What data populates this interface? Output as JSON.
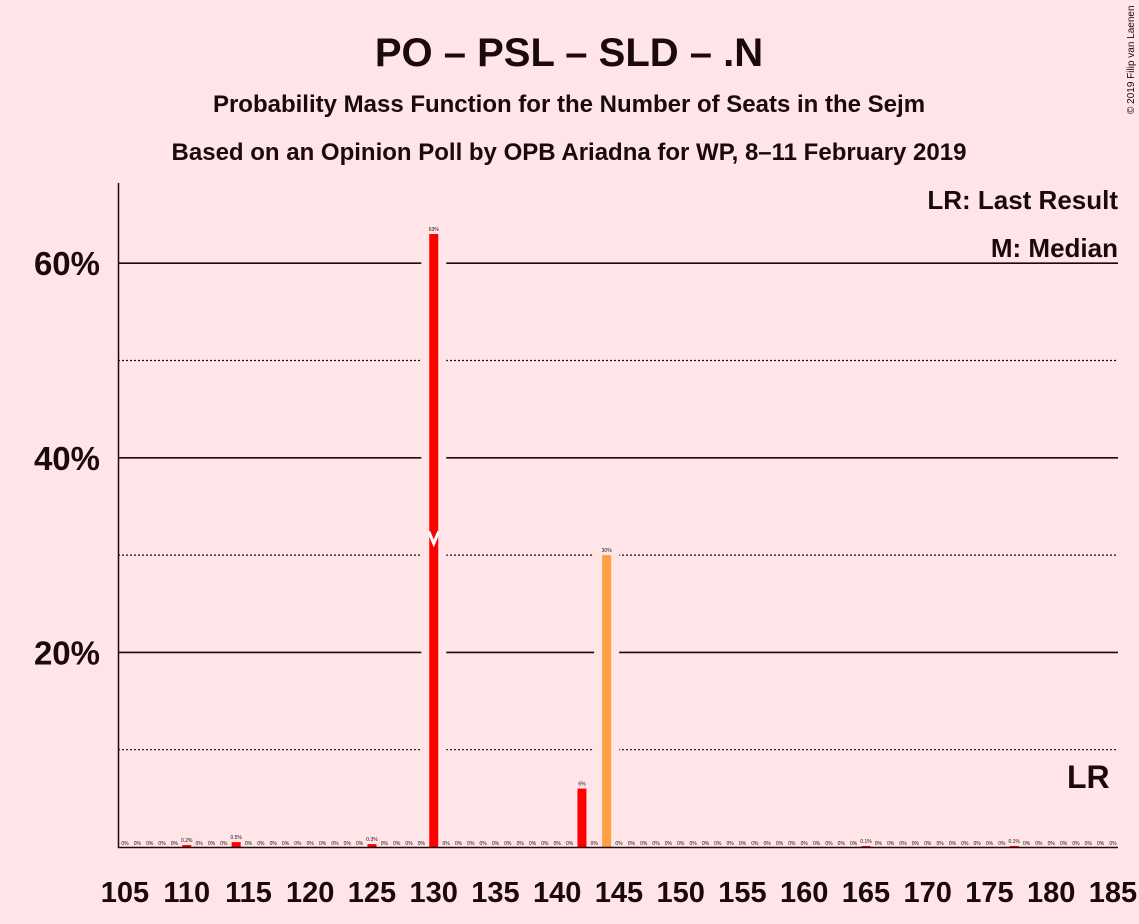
{
  "header": {
    "title": "PO – PSL – SLD – .N",
    "subtitle": "Probability Mass Function for the Number of Seats in the Sejm",
    "source": "Based on an Opinion Poll by OPB Ariadna for WP, 8–11 February 2019",
    "copyright": "© 2019 Filip van Laenen"
  },
  "legend": {
    "last_result": "LR: Last Result",
    "median": "M: Median"
  },
  "markers": {
    "lr_label": "LR",
    "median_label": "M"
  },
  "colors": {
    "background": "#FFE4E8",
    "bar": "#FF0000",
    "bar_highlight": "#FFA040",
    "text": "#1a0a0a"
  },
  "chart_data": {
    "type": "bar",
    "x_start": 105,
    "x_end": 185,
    "y_ticks": [
      {
        "value": 20,
        "label": "20%"
      },
      {
        "value": 40,
        "label": "40%"
      },
      {
        "value": 60,
        "label": "60%"
      }
    ],
    "y_dotted": [
      10,
      30,
      50
    ],
    "ylim": [
      0,
      68.5
    ],
    "x_tick_labels": [
      "105",
      "110",
      "115",
      "120",
      "125",
      "130",
      "135",
      "140",
      "145",
      "150",
      "155",
      "160",
      "165",
      "170",
      "175",
      "180",
      "185"
    ],
    "median_seat": 130,
    "last_result_seat": 183,
    "bars": [
      {
        "seat": 105,
        "value": 0,
        "label": "0%"
      },
      {
        "seat": 106,
        "value": 0,
        "label": "0%"
      },
      {
        "seat": 107,
        "value": 0,
        "label": "0%"
      },
      {
        "seat": 108,
        "value": 0,
        "label": "0%"
      },
      {
        "seat": 109,
        "value": 0,
        "label": "0%"
      },
      {
        "seat": 110,
        "value": 0.2,
        "label": "0.2%"
      },
      {
        "seat": 111,
        "value": 0,
        "label": "0%"
      },
      {
        "seat": 112,
        "value": 0,
        "label": "0%"
      },
      {
        "seat": 113,
        "value": 0,
        "label": "0%"
      },
      {
        "seat": 114,
        "value": 0.5,
        "label": "0.5%"
      },
      {
        "seat": 115,
        "value": 0,
        "label": "0%"
      },
      {
        "seat": 116,
        "value": 0,
        "label": "0%"
      },
      {
        "seat": 117,
        "value": 0,
        "label": "0%"
      },
      {
        "seat": 118,
        "value": 0,
        "label": "0%"
      },
      {
        "seat": 119,
        "value": 0,
        "label": "0%"
      },
      {
        "seat": 120,
        "value": 0,
        "label": "0%"
      },
      {
        "seat": 121,
        "value": 0,
        "label": "0%"
      },
      {
        "seat": 122,
        "value": 0,
        "label": "0%"
      },
      {
        "seat": 123,
        "value": 0,
        "label": "0%"
      },
      {
        "seat": 124,
        "value": 0,
        "label": "0%"
      },
      {
        "seat": 125,
        "value": 0.3,
        "label": "0.3%"
      },
      {
        "seat": 126,
        "value": 0,
        "label": "0%"
      },
      {
        "seat": 127,
        "value": 0,
        "label": "0%"
      },
      {
        "seat": 128,
        "value": 0,
        "label": "0%"
      },
      {
        "seat": 129,
        "value": 0,
        "label": "0%"
      },
      {
        "seat": 130,
        "value": 63,
        "label": "63%"
      },
      {
        "seat": 131,
        "value": 0,
        "label": "0%"
      },
      {
        "seat": 132,
        "value": 0,
        "label": "0%"
      },
      {
        "seat": 133,
        "value": 0,
        "label": "0%"
      },
      {
        "seat": 134,
        "value": 0,
        "label": "0%"
      },
      {
        "seat": 135,
        "value": 0,
        "label": "0%"
      },
      {
        "seat": 136,
        "value": 0,
        "label": "0%"
      },
      {
        "seat": 137,
        "value": 0,
        "label": "0%"
      },
      {
        "seat": 138,
        "value": 0,
        "label": "0%"
      },
      {
        "seat": 139,
        "value": 0,
        "label": "0%"
      },
      {
        "seat": 140,
        "value": 0,
        "label": "0%"
      },
      {
        "seat": 141,
        "value": 0,
        "label": "0%"
      },
      {
        "seat": 142,
        "value": 6,
        "label": "6%"
      },
      {
        "seat": 143,
        "value": 0,
        "label": "0%"
      },
      {
        "seat": 144,
        "value": 30,
        "label": "30%",
        "highlight": true
      },
      {
        "seat": 145,
        "value": 0,
        "label": "0%"
      },
      {
        "seat": 146,
        "value": 0,
        "label": "0%"
      },
      {
        "seat": 147,
        "value": 0,
        "label": "0%"
      },
      {
        "seat": 148,
        "value": 0,
        "label": "0%"
      },
      {
        "seat": 149,
        "value": 0,
        "label": "0%"
      },
      {
        "seat": 150,
        "value": 0,
        "label": "0%"
      },
      {
        "seat": 151,
        "value": 0,
        "label": "0%"
      },
      {
        "seat": 152,
        "value": 0,
        "label": "0%"
      },
      {
        "seat": 153,
        "value": 0,
        "label": "0%"
      },
      {
        "seat": 154,
        "value": 0,
        "label": "0%"
      },
      {
        "seat": 155,
        "value": 0,
        "label": "0%"
      },
      {
        "seat": 156,
        "value": 0,
        "label": "0%"
      },
      {
        "seat": 157,
        "value": 0,
        "label": "0%"
      },
      {
        "seat": 158,
        "value": 0,
        "label": "0%"
      },
      {
        "seat": 159,
        "value": 0,
        "label": "0%"
      },
      {
        "seat": 160,
        "value": 0,
        "label": "0%"
      },
      {
        "seat": 161,
        "value": 0,
        "label": "0%"
      },
      {
        "seat": 162,
        "value": 0,
        "label": "0%"
      },
      {
        "seat": 163,
        "value": 0,
        "label": "0%"
      },
      {
        "seat": 164,
        "value": 0,
        "label": "0%"
      },
      {
        "seat": 165,
        "value": 0.1,
        "label": "0.1%"
      },
      {
        "seat": 166,
        "value": 0,
        "label": "0%"
      },
      {
        "seat": 167,
        "value": 0,
        "label": "0%"
      },
      {
        "seat": 168,
        "value": 0,
        "label": "0%"
      },
      {
        "seat": 169,
        "value": 0,
        "label": "0%"
      },
      {
        "seat": 170,
        "value": 0,
        "label": "0%"
      },
      {
        "seat": 171,
        "value": 0,
        "label": "0%"
      },
      {
        "seat": 172,
        "value": 0,
        "label": "0%"
      },
      {
        "seat": 173,
        "value": 0,
        "label": "0%"
      },
      {
        "seat": 174,
        "value": 0,
        "label": "0%"
      },
      {
        "seat": 175,
        "value": 0,
        "label": "0%"
      },
      {
        "seat": 176,
        "value": 0,
        "label": "0%"
      },
      {
        "seat": 177,
        "value": 0.1,
        "label": "0.1%"
      },
      {
        "seat": 178,
        "value": 0,
        "label": "0%"
      },
      {
        "seat": 179,
        "value": 0,
        "label": "0%"
      },
      {
        "seat": 180,
        "value": 0,
        "label": "0%"
      },
      {
        "seat": 181,
        "value": 0,
        "label": "0%"
      },
      {
        "seat": 182,
        "value": 0,
        "label": "0%"
      },
      {
        "seat": 183,
        "value": 0,
        "label": "0%"
      },
      {
        "seat": 184,
        "value": 0,
        "label": "0%"
      },
      {
        "seat": 185,
        "value": 0,
        "label": "0%"
      }
    ]
  }
}
